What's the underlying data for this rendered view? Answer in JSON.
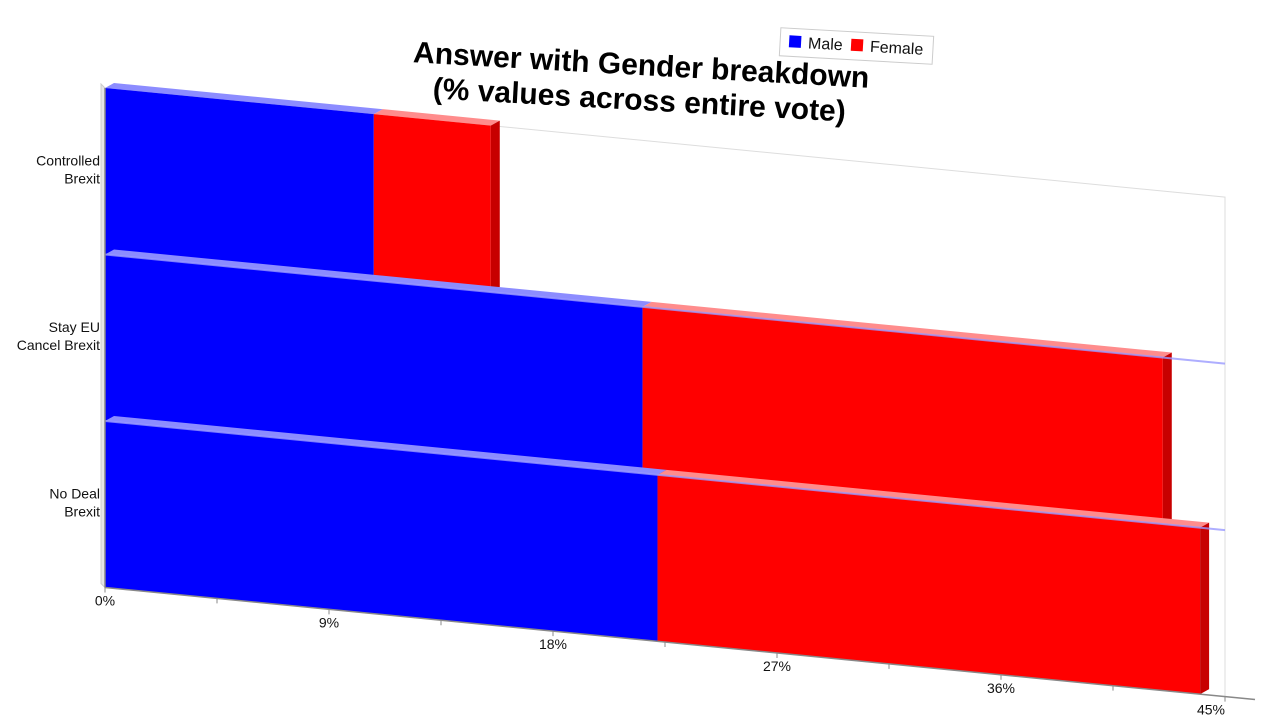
{
  "chart_data": {
    "type": "bar",
    "orientation": "horizontal",
    "stacked": true,
    "title": "Answer with Gender breakdown",
    "subtitle": "(% values across entire vote)",
    "categories": [
      "Controlled Brexit",
      "Stay EU Cancel Brexit",
      "No Deal Brexit"
    ],
    "category_lines": [
      [
        "Controlled",
        "Brexit"
      ],
      [
        "Stay EU",
        "Cancel Brexit"
      ],
      [
        "No Deal",
        "Brexit"
      ]
    ],
    "series": [
      {
        "name": "Male",
        "color": "#0000ff",
        "values": [
          10.8,
          21.6,
          22.2
        ]
      },
      {
        "name": "Female",
        "color": "#ff0000",
        "values": [
          4.7,
          20.9,
          21.8
        ]
      }
    ],
    "xlim": [
      0,
      45
    ],
    "x_ticks": [
      "0%",
      "9%",
      "18%",
      "27%",
      "36%",
      "45%"
    ],
    "legend_position": "top",
    "grid": false
  }
}
